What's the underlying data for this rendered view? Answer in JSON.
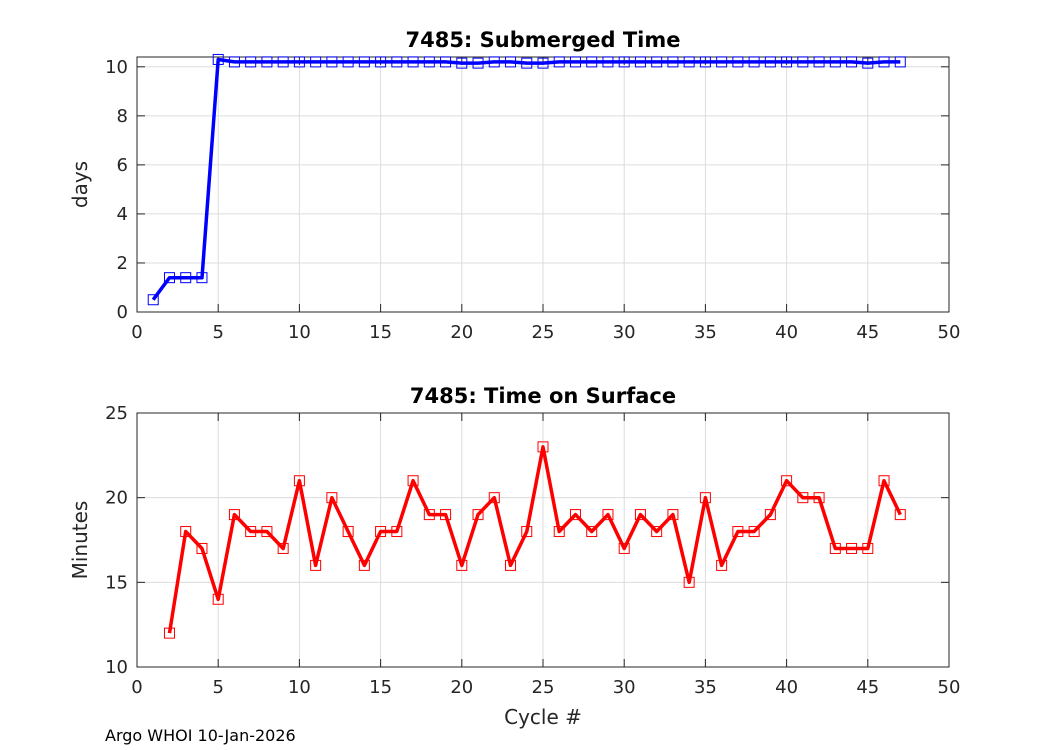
{
  "footer": "Argo WHOI 10-Jan-2026",
  "chart_data": [
    {
      "type": "line",
      "title": "7485: Submerged Time",
      "xlabel": "",
      "ylabel": "days",
      "xlim": [
        0,
        50
      ],
      "ylim": [
        0,
        10.4
      ],
      "xticks": [
        0,
        5,
        10,
        15,
        20,
        25,
        30,
        35,
        40,
        45,
        50
      ],
      "yticks": [
        0,
        2,
        4,
        6,
        8,
        10
      ],
      "grid": true,
      "series": [
        {
          "name": "Submerged Time",
          "color": "#0000ff",
          "marker": "square",
          "x": [
            1,
            2,
            3,
            4,
            5,
            6,
            7,
            8,
            9,
            10,
            11,
            12,
            13,
            14,
            15,
            16,
            17,
            18,
            19,
            20,
            21,
            22,
            23,
            24,
            25,
            26,
            27,
            28,
            29,
            30,
            31,
            32,
            33,
            34,
            35,
            36,
            37,
            38,
            39,
            40,
            41,
            42,
            43,
            44,
            45,
            46,
            47
          ],
          "values": [
            0.5,
            1.4,
            1.4,
            1.4,
            10.3,
            10.2,
            10.2,
            10.2,
            10.2,
            10.2,
            10.2,
            10.2,
            10.2,
            10.2,
            10.2,
            10.2,
            10.2,
            10.2,
            10.2,
            10.15,
            10.15,
            10.2,
            10.2,
            10.15,
            10.15,
            10.2,
            10.2,
            10.2,
            10.2,
            10.2,
            10.2,
            10.2,
            10.2,
            10.2,
            10.2,
            10.2,
            10.2,
            10.2,
            10.2,
            10.2,
            10.2,
            10.2,
            10.2,
            10.2,
            10.15,
            10.2,
            10.2
          ]
        }
      ]
    },
    {
      "type": "line",
      "title": "7485: Time on Surface",
      "xlabel": "Cycle #",
      "ylabel": "Minutes",
      "xlim": [
        0,
        50
      ],
      "ylim": [
        10,
        25
      ],
      "xticks": [
        0,
        5,
        10,
        15,
        20,
        25,
        30,
        35,
        40,
        45,
        50
      ],
      "yticks": [
        10,
        15,
        20,
        25
      ],
      "grid": true,
      "series": [
        {
          "name": "Time on Surface",
          "color": "#ff0000",
          "marker": "square",
          "x": [
            2,
            3,
            4,
            5,
            6,
            7,
            8,
            9,
            10,
            11,
            12,
            13,
            14,
            15,
            16,
            17,
            18,
            19,
            20,
            21,
            22,
            23,
            24,
            25,
            26,
            27,
            28,
            29,
            30,
            31,
            32,
            33,
            34,
            35,
            36,
            37,
            38,
            39,
            40,
            41,
            42,
            43,
            44,
            45,
            46,
            47
          ],
          "values": [
            12,
            18,
            17,
            14,
            19,
            18,
            18,
            17,
            21,
            16,
            20,
            18,
            16,
            18,
            18,
            21,
            19,
            19,
            16,
            19,
            20,
            16,
            18,
            23,
            18,
            19,
            18,
            19,
            17,
            19,
            18,
            19,
            15,
            20,
            16,
            18,
            18,
            19,
            21,
            20,
            20,
            17,
            17,
            17,
            21,
            19
          ]
        }
      ]
    }
  ]
}
